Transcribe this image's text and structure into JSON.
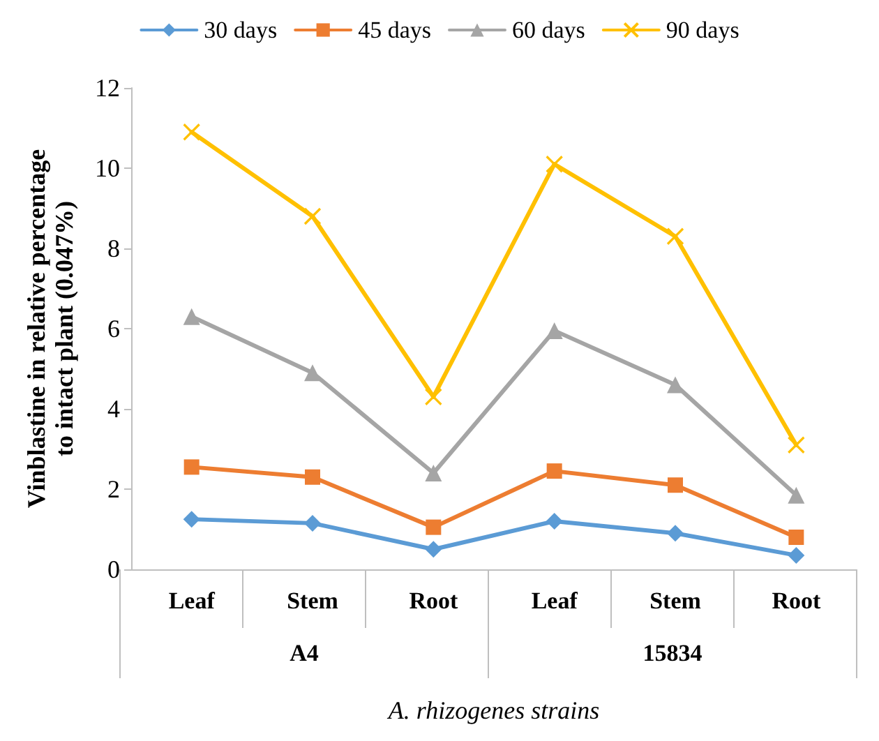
{
  "chart_data": {
    "type": "line",
    "xlabel": "A. rhizogenes strains",
    "ylabel": "Vinblastine in relative percentage to intact plant (0.047%)",
    "categories": [
      "Leaf",
      "Stem",
      "Root",
      "Leaf",
      "Stem",
      "Root"
    ],
    "annotations": [
      "A4",
      "15834"
    ],
    "series": [
      {
        "name": "30 days",
        "color": "#5b9bd5",
        "marker": "diamond",
        "values": [
          1.25,
          1.15,
          0.5,
          1.2,
          0.9,
          0.35
        ]
      },
      {
        "name": "45 days",
        "color": "#ed7d31",
        "marker": "square",
        "values": [
          2.55,
          2.3,
          1.05,
          2.45,
          2.1,
          0.8
        ]
      },
      {
        "name": "60 days",
        "color": "#a5a5a5",
        "marker": "triangle",
        "values": [
          6.3,
          4.9,
          2.4,
          5.95,
          4.6,
          1.85
        ]
      },
      {
        "name": "90 days",
        "color": "#ffc000",
        "marker": "cross",
        "values": [
          10.9,
          8.8,
          4.3,
          10.1,
          8.3,
          3.1
        ]
      }
    ],
    "ylim": [
      0,
      12
    ],
    "yticks": [
      0,
      2,
      4,
      6,
      8,
      10,
      12
    ],
    "grid": false,
    "legend": "top"
  }
}
